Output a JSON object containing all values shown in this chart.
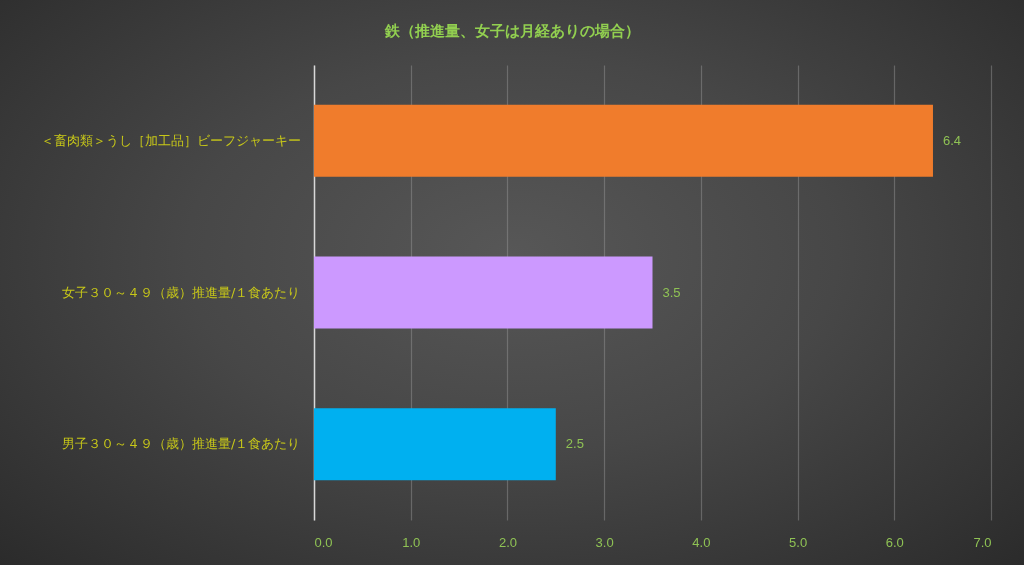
{
  "chart_data": {
    "type": "bar",
    "orientation": "horizontal",
    "title": "鉄（推進量、女子は月経ありの場合）",
    "categories": [
      "＜畜肉類＞うし［加工品］ビーフジャーキー",
      "女子３０～４９（歳）推進量/１食あたり",
      "男子３０～４９（歳）推進量/１食あたり"
    ],
    "values": [
      6.4,
      3.5,
      2.5
    ],
    "colors": [
      "#f07c2c",
      "#cc99ff",
      "#00b0f0"
    ],
    "xlim": [
      0,
      7
    ],
    "xticks": [
      {
        "value": 0,
        "label": "0.0"
      },
      {
        "value": 1,
        "label": "1.0"
      },
      {
        "value": 2,
        "label": "2.0"
      },
      {
        "value": 3,
        "label": "3.0"
      },
      {
        "value": 4,
        "label": "4.0"
      },
      {
        "value": 5,
        "label": "5.0"
      },
      {
        "value": 6,
        "label": "6.0"
      },
      {
        "value": 7,
        "label": "7.0"
      }
    ],
    "grid": "x",
    "data_labels": true
  }
}
